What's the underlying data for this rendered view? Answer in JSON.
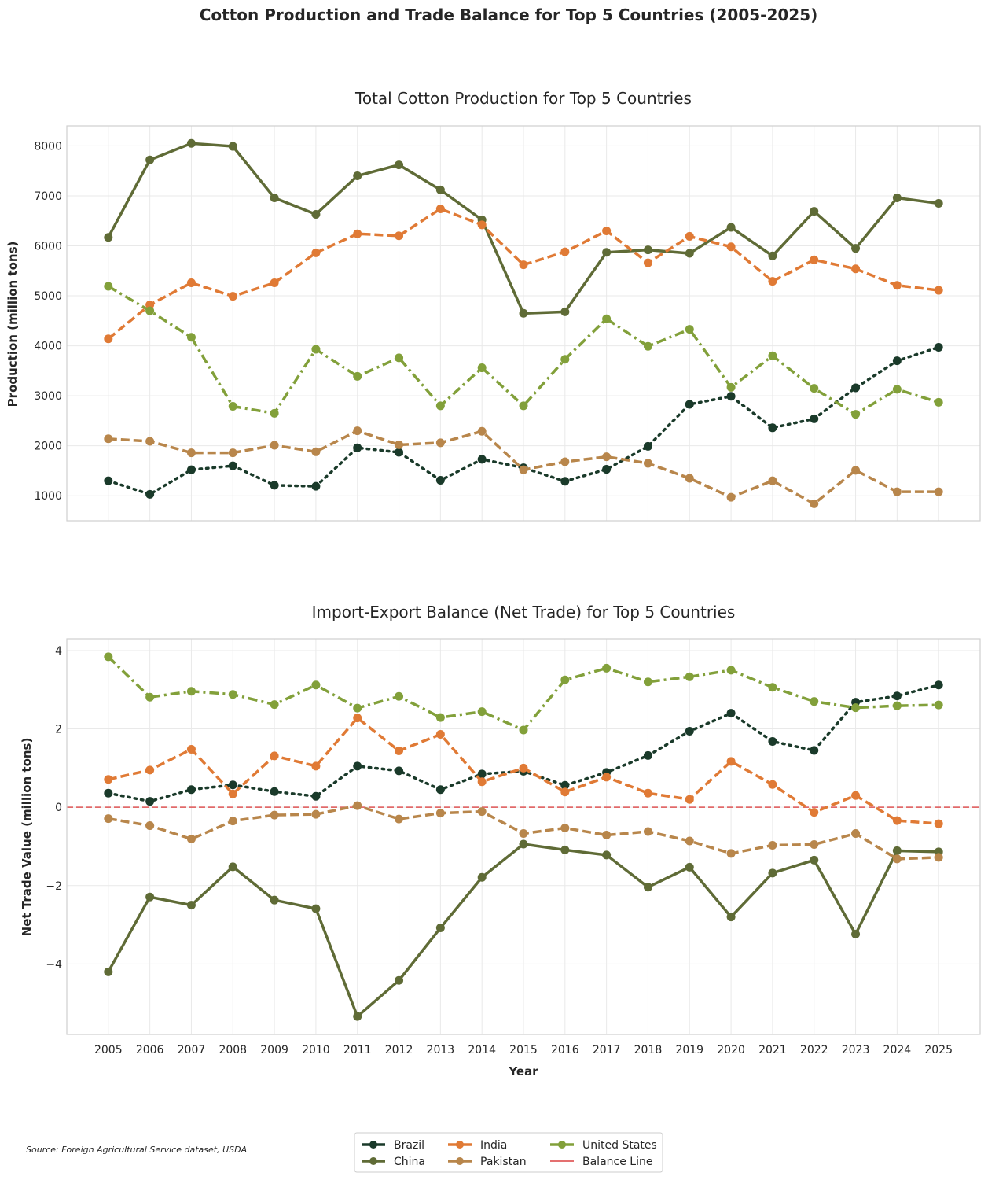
{
  "figure": {
    "suptitle": "Cotton Production and Trade Balance for Top 5 Countries (2005-2025)",
    "source": "Source: Foreign Agricultural Service dataset, USDA"
  },
  "chart_data": [
    {
      "type": "line",
      "title": "Total Cotton Production for Top 5 Countries",
      "xlabel": "",
      "ylabel": "Production (million tons)",
      "x": [
        2005,
        2006,
        2007,
        2008,
        2009,
        2010,
        2011,
        2012,
        2013,
        2014,
        2015,
        2016,
        2017,
        2018,
        2019,
        2020,
        2021,
        2022,
        2023,
        2024,
        2025
      ],
      "xlim": [
        2004,
        2026
      ],
      "ylim": [
        500,
        8400
      ],
      "yticks": [
        1000,
        2000,
        3000,
        4000,
        5000,
        6000,
        7000,
        8000
      ],
      "grid": true,
      "series": [
        {
          "name": "Brazil",
          "color": "#1a3a2a",
          "dash": "dotted",
          "values": [
            1300,
            1030,
            1520,
            1600,
            1210,
            1190,
            1960,
            1870,
            1310,
            1730,
            1560,
            1290,
            1530,
            1990,
            2830,
            2990,
            2360,
            2540,
            3160,
            3700,
            3970
          ]
        },
        {
          "name": "China",
          "color": "#5f6b36",
          "dash": "solid",
          "values": [
            6170,
            7720,
            8050,
            7990,
            6960,
            6630,
            7400,
            7620,
            7120,
            6520,
            4650,
            4680,
            5870,
            5920,
            5850,
            6370,
            5800,
            6690,
            5950,
            6960,
            6850
          ]
        },
        {
          "name": "India",
          "color": "#e07a35",
          "dash": "dashed",
          "values": [
            4140,
            4820,
            5260,
            4990,
            5260,
            5860,
            6240,
            6200,
            6740,
            6420,
            5620,
            5880,
            6300,
            5660,
            6190,
            5980,
            5290,
            5720,
            5540,
            5210,
            5110
          ]
        },
        {
          "name": "Pakistan",
          "color": "#b8864b",
          "dash": "dashed",
          "values": [
            2140,
            2090,
            1860,
            1860,
            2010,
            1880,
            2300,
            2020,
            2060,
            2290,
            1520,
            1680,
            1780,
            1650,
            1350,
            970,
            1300,
            840,
            1510,
            1080,
            1080
          ]
        },
        {
          "name": "United States",
          "color": "#82a03a",
          "dash": "dashdot",
          "values": [
            5190,
            4700,
            4170,
            2790,
            2650,
            3930,
            3390,
            3760,
            2800,
            3560,
            2800,
            3730,
            4540,
            3990,
            4330,
            3170,
            3800,
            3150,
            2630,
            3130,
            2870
          ]
        }
      ]
    },
    {
      "type": "line",
      "title": "Import-Export Balance (Net Trade) for Top 5 Countries",
      "xlabel": "Year",
      "ylabel": "Net Trade Value (million tons)",
      "x": [
        2005,
        2006,
        2007,
        2008,
        2009,
        2010,
        2011,
        2012,
        2013,
        2014,
        2015,
        2016,
        2017,
        2018,
        2019,
        2020,
        2021,
        2022,
        2023,
        2024,
        2025
      ],
      "xticks": [
        "2005",
        "2006",
        "2007",
        "2008",
        "2009",
        "2010",
        "2011",
        "2012",
        "2013",
        "2014",
        "2015",
        "2016",
        "2017",
        "2018",
        "2019",
        "2020",
        "2021",
        "2022",
        "2023",
        "2024",
        "2025"
      ],
      "xlim": [
        2004,
        2026
      ],
      "ylim": [
        -5.8,
        4.3
      ],
      "yticks": [
        -4,
        -2,
        0,
        2,
        4
      ],
      "ytick_labels": [
        "−4",
        "−2",
        "0",
        "2",
        "4"
      ],
      "grid": true,
      "reference_line": {
        "name": "Balance Line",
        "y": 0,
        "color": "#e05c5c",
        "dash": "dashed"
      },
      "series": [
        {
          "name": "Brazil",
          "color": "#1a3a2a",
          "dash": "dotted",
          "values": [
            0.36,
            0.15,
            0.45,
            0.57,
            0.4,
            0.28,
            1.05,
            0.93,
            0.45,
            0.85,
            0.92,
            0.56,
            0.89,
            1.32,
            1.94,
            2.4,
            1.68,
            1.45,
            2.68,
            2.84,
            3.12
          ]
        },
        {
          "name": "China",
          "color": "#5f6b36",
          "dash": "solid",
          "values": [
            -4.2,
            -2.29,
            -2.5,
            -1.52,
            -2.37,
            -2.59,
            -5.34,
            -4.42,
            -3.08,
            -1.79,
            -0.94,
            -1.09,
            -1.22,
            -2.04,
            -1.53,
            -2.8,
            -1.68,
            -1.35,
            -3.24,
            -1.11,
            -1.14
          ]
        },
        {
          "name": "India",
          "color": "#e07a35",
          "dash": "dashed",
          "values": [
            0.71,
            0.95,
            1.48,
            0.34,
            1.31,
            1.05,
            2.28,
            1.44,
            1.86,
            0.65,
            1.0,
            0.39,
            0.77,
            0.36,
            0.2,
            1.17,
            0.58,
            -0.13,
            0.3,
            -0.34,
            -0.42
          ]
        },
        {
          "name": "Pakistan",
          "color": "#b8864b",
          "dash": "dashed",
          "values": [
            -0.29,
            -0.47,
            -0.81,
            -0.35,
            -0.2,
            -0.18,
            0.04,
            -0.3,
            -0.15,
            -0.11,
            -0.67,
            -0.53,
            -0.71,
            -0.62,
            -0.86,
            -1.18,
            -0.97,
            -0.95,
            -0.67,
            -1.32,
            -1.28
          ]
        },
        {
          "name": "United States",
          "color": "#82a03a",
          "dash": "dashdot",
          "values": [
            3.84,
            2.81,
            2.96,
            2.88,
            2.62,
            3.12,
            2.53,
            2.83,
            2.29,
            2.44,
            1.97,
            3.25,
            3.55,
            3.2,
            3.33,
            3.5,
            3.06,
            2.7,
            2.54,
            2.59,
            2.61
          ]
        }
      ]
    }
  ],
  "legend": {
    "placement": "bottom-center",
    "columns": 3,
    "items": [
      "Brazil",
      "China",
      "India",
      "Pakistan",
      "United States",
      "Balance Line"
    ]
  }
}
